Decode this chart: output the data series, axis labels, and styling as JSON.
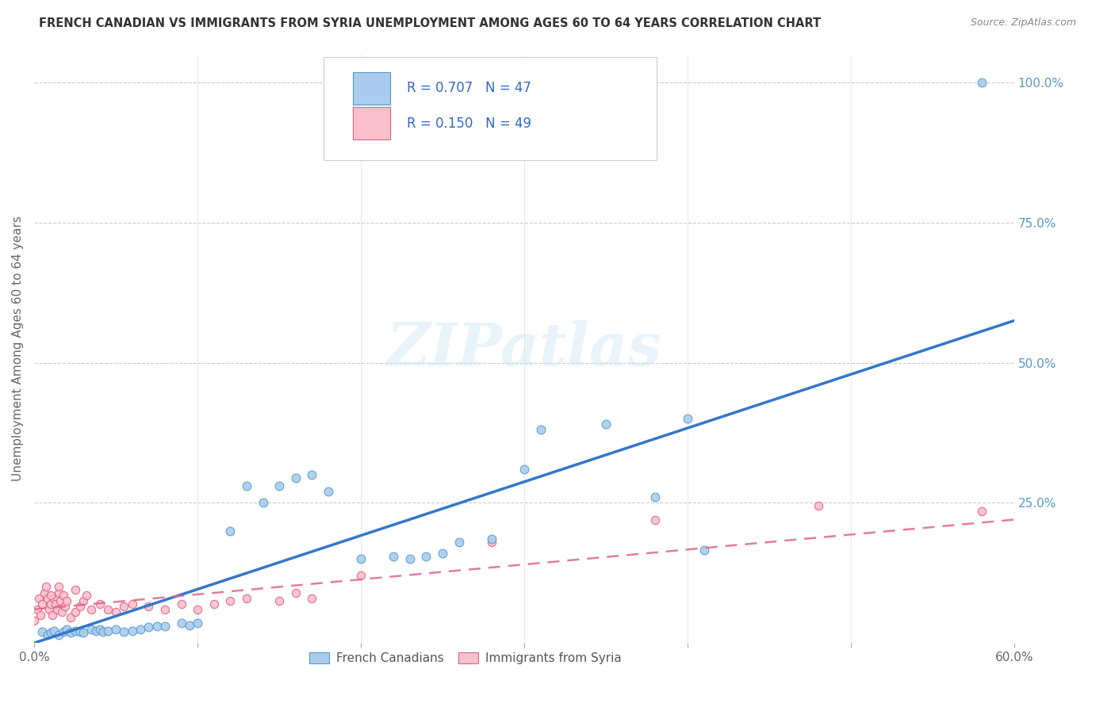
{
  "title": "FRENCH CANADIAN VS IMMIGRANTS FROM SYRIA UNEMPLOYMENT AMONG AGES 60 TO 64 YEARS CORRELATION CHART",
  "source": "Source: ZipAtlas.com",
  "ylabel": "Unemployment Among Ages 60 to 64 years",
  "watermark": "ZIPatlas",
  "xlim": [
    0.0,
    0.6
  ],
  "ylim": [
    0.0,
    1.05
  ],
  "xticks": [
    0.0,
    0.1,
    0.2,
    0.3,
    0.4,
    0.5,
    0.6
  ],
  "yticks": [
    0.0,
    0.25,
    0.5,
    0.75,
    1.0
  ],
  "yticklabels_right": [
    "",
    "25.0%",
    "50.0%",
    "75.0%",
    "100.0%"
  ],
  "grid_color": "#cccccc",
  "background_color": "#ffffff",
  "french_canadians": {
    "x": [
      0.005,
      0.008,
      0.01,
      0.012,
      0.015,
      0.018,
      0.02,
      0.022,
      0.025,
      0.028,
      0.03,
      0.035,
      0.038,
      0.04,
      0.042,
      0.045,
      0.05,
      0.055,
      0.06,
      0.065,
      0.07,
      0.075,
      0.08,
      0.09,
      0.095,
      0.1,
      0.12,
      0.13,
      0.14,
      0.15,
      0.16,
      0.17,
      0.18,
      0.2,
      0.22,
      0.23,
      0.24,
      0.25,
      0.26,
      0.28,
      0.3,
      0.31,
      0.35,
      0.38,
      0.4,
      0.58,
      0.41
    ],
    "y": [
      0.02,
      0.015,
      0.018,
      0.022,
      0.015,
      0.02,
      0.025,
      0.018,
      0.022,
      0.02,
      0.018,
      0.025,
      0.022,
      0.025,
      0.02,
      0.022,
      0.025,
      0.02,
      0.022,
      0.025,
      0.028,
      0.03,
      0.03,
      0.035,
      0.032,
      0.035,
      0.2,
      0.28,
      0.25,
      0.28,
      0.295,
      0.3,
      0.27,
      0.15,
      0.155,
      0.15,
      0.155,
      0.16,
      0.18,
      0.185,
      0.31,
      0.38,
      0.39,
      0.26,
      0.4,
      1.0,
      0.165
    ],
    "color": "#aaccee",
    "edge_color": "#5599cc",
    "size": 60,
    "label": "French Canadians",
    "R": 0.707,
    "N": 47,
    "line_color": "#3377cc",
    "line_x": [
      0.0,
      0.6
    ],
    "line_y": [
      0.0,
      0.575
    ]
  },
  "syria": {
    "x": [
      0.0,
      0.002,
      0.003,
      0.004,
      0.005,
      0.006,
      0.007,
      0.008,
      0.009,
      0.01,
      0.011,
      0.012,
      0.013,
      0.014,
      0.015,
      0.016,
      0.017,
      0.018,
      0.019,
      0.02,
      0.022,
      0.025,
      0.028,
      0.03,
      0.032,
      0.035,
      0.04,
      0.045,
      0.05,
      0.055,
      0.06,
      0.07,
      0.08,
      0.09,
      0.1,
      0.11,
      0.12,
      0.13,
      0.15,
      0.16,
      0.17,
      0.2,
      0.025,
      0.015,
      0.01,
      0.48,
      0.58,
      0.28,
      0.38
    ],
    "y": [
      0.04,
      0.06,
      0.08,
      0.05,
      0.07,
      0.09,
      0.1,
      0.08,
      0.06,
      0.07,
      0.05,
      0.08,
      0.07,
      0.06,
      0.09,
      0.075,
      0.055,
      0.085,
      0.065,
      0.075,
      0.045,
      0.055,
      0.065,
      0.075,
      0.085,
      0.06,
      0.07,
      0.06,
      0.055,
      0.065,
      0.07,
      0.065,
      0.06,
      0.07,
      0.06,
      0.07,
      0.075,
      0.08,
      0.075,
      0.09,
      0.08,
      0.12,
      0.095,
      0.1,
      0.085,
      0.245,
      0.235,
      0.18,
      0.22
    ],
    "color": "#f9c0cc",
    "edge_color": "#e06080",
    "size": 55,
    "label": "Immigrants from Syria",
    "R": 0.15,
    "N": 49,
    "line_color": "#dd6688",
    "line_x": [
      0.0,
      0.6
    ],
    "line_y": [
      0.06,
      0.22
    ]
  },
  "tick_color": "#aaaaaa",
  "label_color": "#666666",
  "right_tick_color": "#5599cc",
  "title_color": "#333333",
  "source_color": "#888888"
}
